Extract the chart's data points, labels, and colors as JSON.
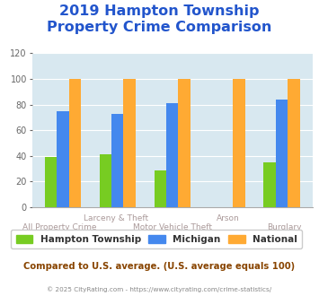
{
  "title": "2019 Hampton Township\nProperty Crime Comparison",
  "hampton": [
    39,
    41,
    29,
    0,
    35
  ],
  "michigan": [
    75,
    73,
    81,
    0,
    84
  ],
  "national": [
    100,
    100,
    100,
    100,
    100
  ],
  "colors": {
    "hampton": "#77cc22",
    "michigan": "#4488ee",
    "national": "#ffaa33"
  },
  "ylim": [
    0,
    120
  ],
  "yticks": [
    0,
    20,
    40,
    60,
    80,
    100,
    120
  ],
  "title_color": "#2255cc",
  "title_fontsize": 11.5,
  "bg_color": "#d8e8f0",
  "legend_labels": [
    "Hampton Township",
    "Michigan",
    "National"
  ],
  "note": "Compared to U.S. average. (U.S. average equals 100)",
  "footer": "© 2025 CityRating.com - https://www.cityrating.com/crime-statistics/",
  "note_color": "#884400",
  "footer_color": "#888888",
  "label_color": "#aa9999"
}
